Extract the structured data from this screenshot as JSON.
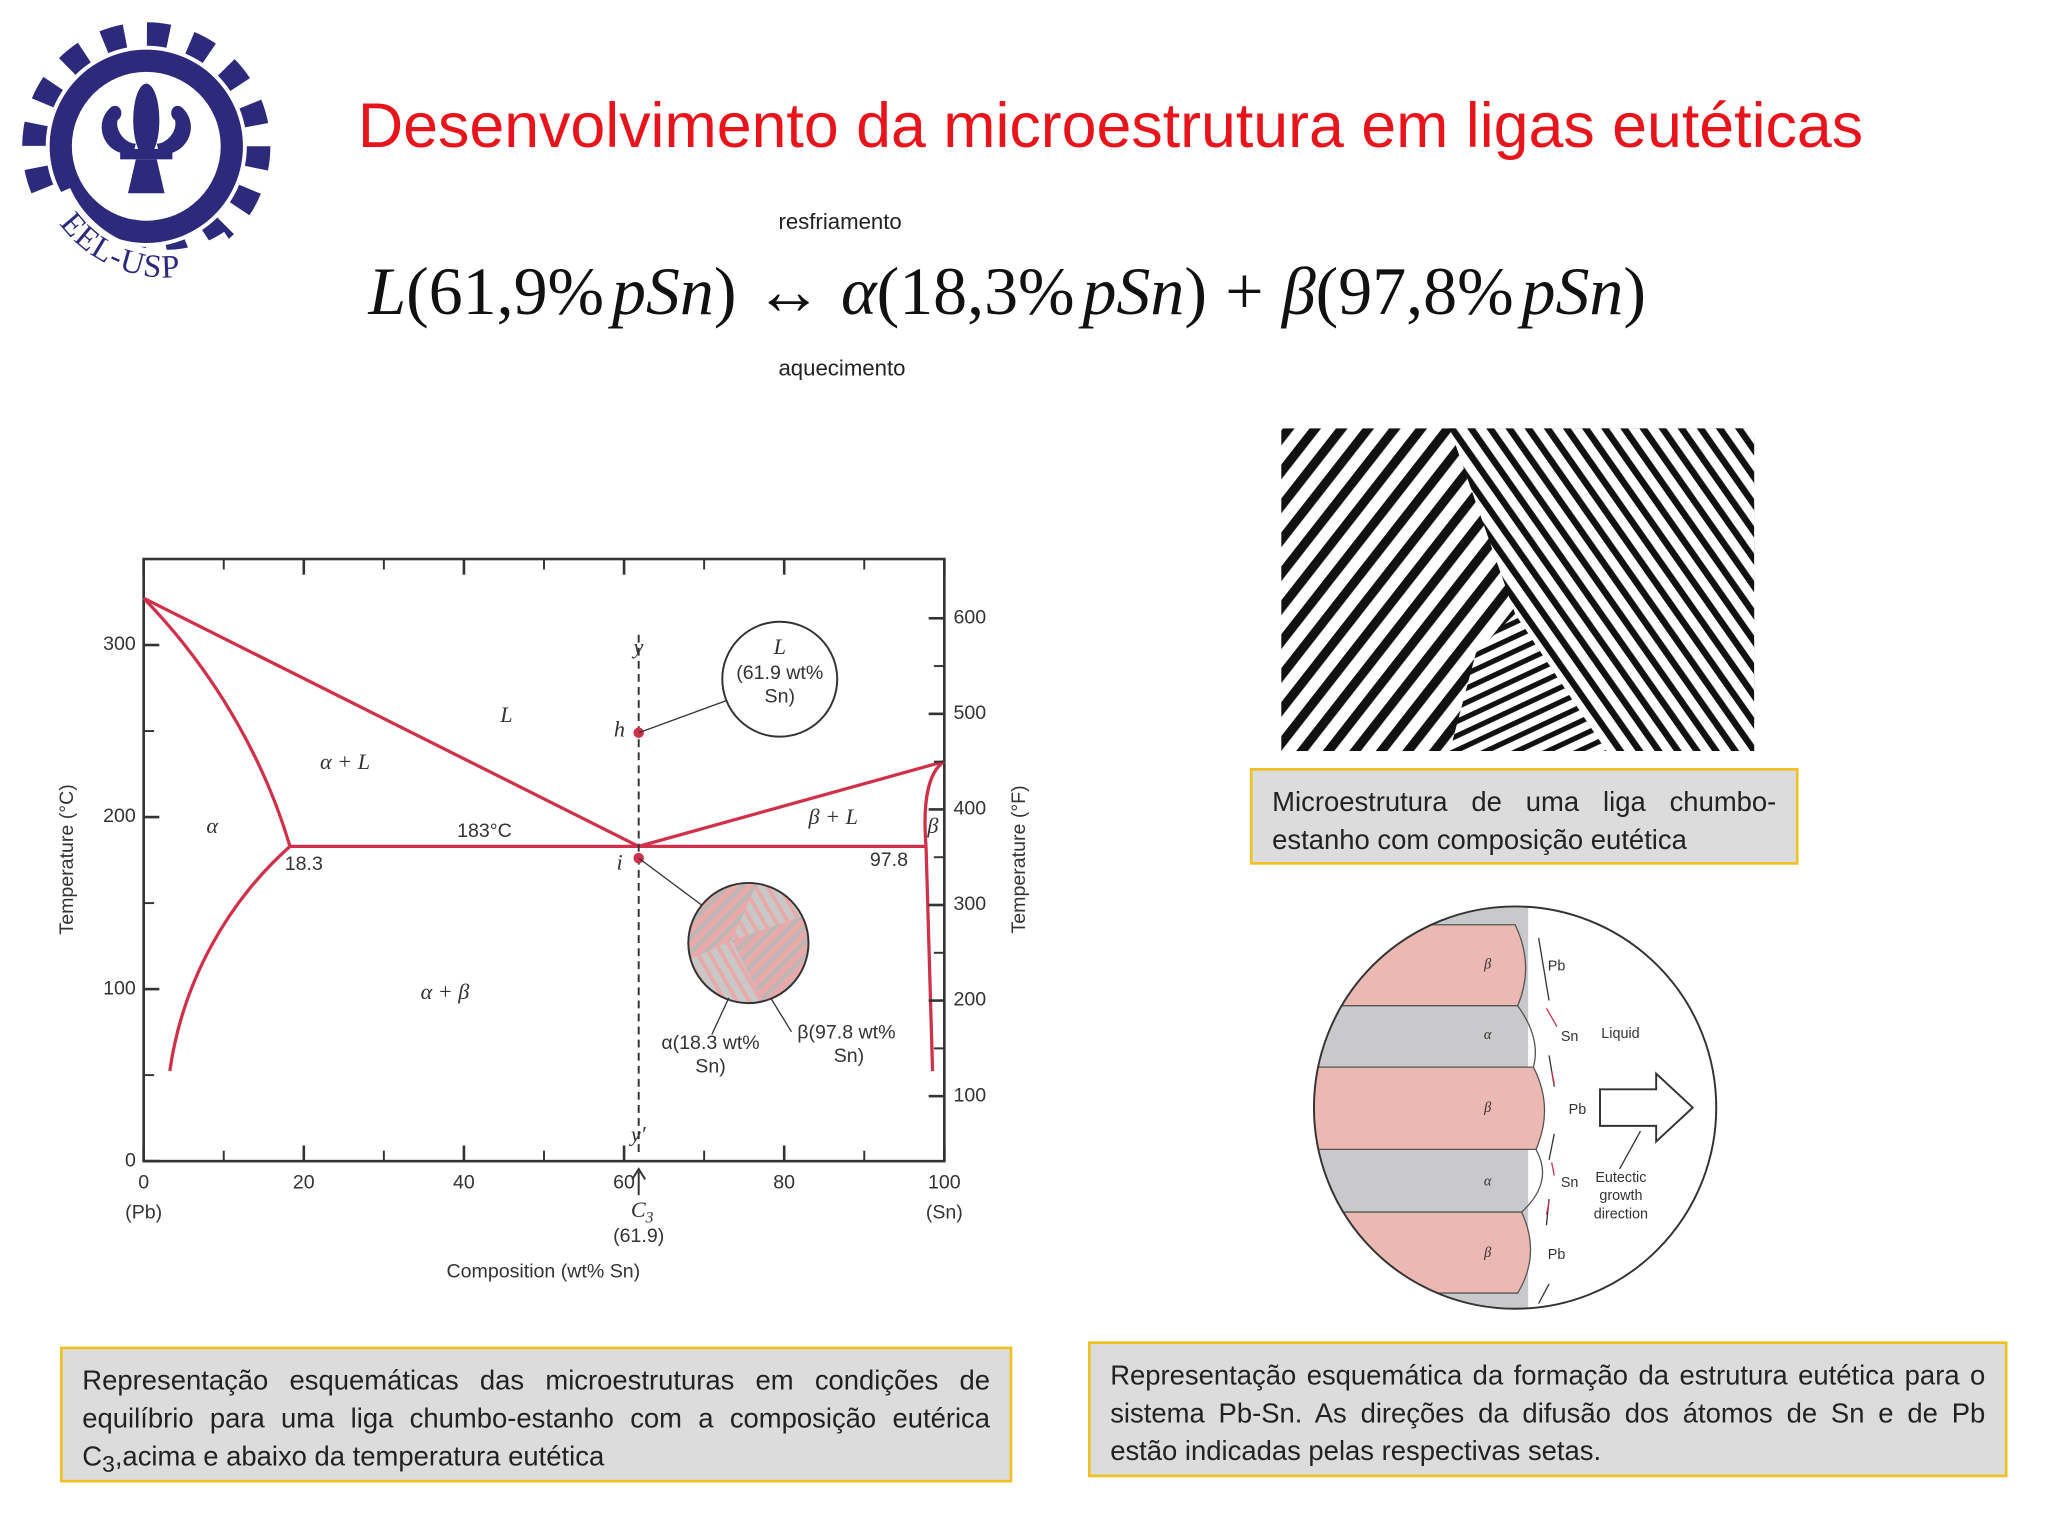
{
  "header": {
    "title": "Desenvolvimento da microestrutura em ligas eutéticas",
    "logo_text": "EEL-USP"
  },
  "equation": {
    "above": "resfriamento",
    "below": "aquecimento",
    "terms": [
      "L",
      "(61,9%",
      "pSn",
      ")",
      "↔",
      "α",
      "(18,3%",
      "pSn",
      ")",
      "+",
      "β",
      "(97,8%",
      "pSn",
      ")"
    ]
  },
  "phase_diagram": {
    "x_label": "Composition (wt% Sn)",
    "y_label": "Temperature (°C)",
    "y2_label": "Temperature (°F)",
    "xlim": [
      0,
      100
    ],
    "xticks": [
      0,
      20,
      40,
      60,
      80,
      100
    ],
    "x_end_labels": [
      "(Pb)",
      "(Sn)"
    ],
    "ylim": [
      0,
      350
    ],
    "yticks": [
      0,
      100,
      200,
      300
    ],
    "y2lim": [
      32,
      662
    ],
    "y2ticks": [
      100,
      200,
      300,
      400,
      500,
      600
    ],
    "composition": {
      "name": "C",
      "sub": "3",
      "label": "(61.9)"
    },
    "regions": [
      "L",
      "α + L",
      "α",
      "α + β",
      "β + L",
      "β"
    ],
    "eutectic_temperature": "183°C",
    "points": [
      "18.3",
      "97.8"
    ],
    "line_labels": [
      "y",
      "h",
      "i",
      "y′"
    ],
    "callouts": {
      "liquid": [
        "L",
        "(61.9 wt%",
        "Sn)"
      ],
      "alpha": [
        "α(18.3 wt%",
        "Sn)"
      ],
      "beta": [
        "β(97.8 wt%",
        "Sn)"
      ]
    }
  },
  "growth_diagram": {
    "phases": [
      "β",
      "α",
      "β",
      "α",
      "β"
    ],
    "atoms": [
      "Pb",
      "Sn",
      "Pb",
      "Sn",
      "Pb"
    ],
    "liquid": "Liquid",
    "direction": [
      "Eutectic",
      "growth",
      "direction"
    ]
  },
  "captions": {
    "diagram": [
      "Representação esquemáticas das microestruturas em condições de equilíbrio para uma liga chumbo-estanho com a composição eutérica C",
      "3",
      ",acima e abaixo da temperatura eutética"
    ],
    "micrograph": "Microestrutura de uma liga chumbo-estanho com composição eutética",
    "growth": "Representação esquemática da formação da estrutura eutética para o sistema Pb-Sn. As direções da difusão dos átomos de Sn e de Pb estão indicadas pelas respectivas setas."
  }
}
